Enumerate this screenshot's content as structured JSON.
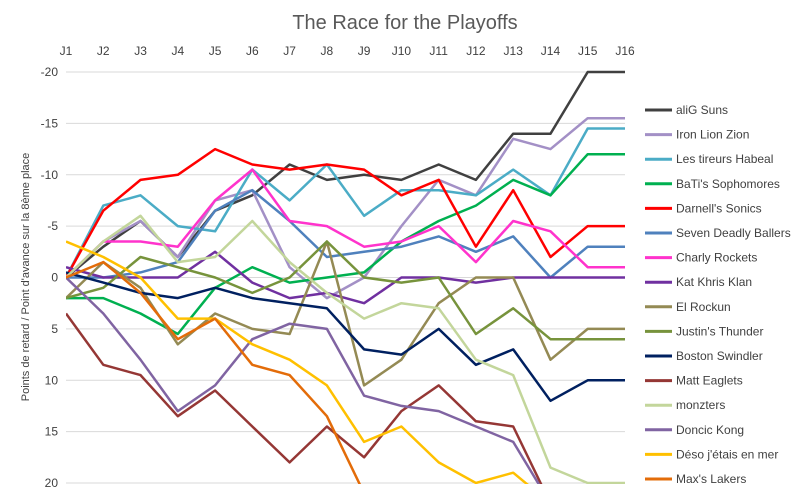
{
  "chart_data": {
    "type": "line",
    "title": "The Race for the Playoffs",
    "ylabel": "Points de retard / Point d'avance sur la 8ème place",
    "xlabel": "",
    "categories": [
      "J1",
      "J2",
      "J3",
      "J4",
      "J5",
      "J6",
      "J7",
      "J8",
      "J9",
      "J10",
      "J11",
      "J12",
      "J13",
      "J14",
      "J15",
      "J16"
    ],
    "yticks": [
      -20,
      -15,
      -10,
      -5,
      0,
      5,
      10,
      15,
      20
    ],
    "ytick_labels": [
      "-20",
      "-15",
      "-10",
      "-5",
      "0",
      "5",
      "10",
      "15",
      "20"
    ],
    "ylim": [
      -20,
      20
    ],
    "y_inverted": true,
    "grid": "horizontal",
    "legend_position": "right",
    "series": [
      {
        "name": "aliG Suns",
        "color": "#404040",
        "values": [
          0,
          -3,
          -5.5,
          -2,
          -6.5,
          -8,
          -11,
          -9.5,
          -10,
          -9.5,
          -11,
          -9.5,
          -14,
          -14,
          -20,
          -20
        ]
      },
      {
        "name": "Iron Lion Zion",
        "color": "#a390c6",
        "values": [
          0,
          -3.5,
          -5.5,
          -2,
          -7.5,
          -8.5,
          -1,
          2,
          0,
          -5,
          -9.5,
          -8,
          -13.5,
          -12.5,
          -15.5,
          -15.5
        ]
      },
      {
        "name": "Les tireurs Habeal",
        "color": "#4bacc6",
        "values": [
          0,
          -7,
          -8,
          -5,
          -4.5,
          -10.5,
          -7.5,
          -11,
          -6,
          -8.5,
          -8.5,
          -8,
          -10.5,
          -8,
          -14.5,
          -14.5
        ]
      },
      {
        "name": "BaTi's Sophomores",
        "color": "#00b050",
        "values": [
          2,
          2,
          3.5,
          5.5,
          1,
          -1,
          0.5,
          0,
          -0.5,
          -3.5,
          -5.5,
          -7,
          -9.5,
          -8,
          -12,
          -12
        ]
      },
      {
        "name": "Darnell's Sonics",
        "color": "#ff0000",
        "values": [
          0,
          -6.5,
          -9.5,
          -10,
          -12.5,
          -11,
          -10.5,
          -11,
          -10.5,
          -8,
          -9.5,
          -3,
          -8.5,
          -2,
          -5,
          -5
        ]
      },
      {
        "name": "Seven Deadly Ballers",
        "color": "#4f81bd",
        "values": [
          0,
          0,
          -0.5,
          -1.5,
          -6.5,
          -8.5,
          -5.5,
          -2,
          -2.5,
          -3,
          -4,
          -2.5,
          -4,
          0,
          -3,
          -3
        ]
      },
      {
        "name": "Charly Rockets",
        "color": "#ff33cc",
        "values": [
          0,
          -3.5,
          -3.5,
          -3,
          -7.5,
          -10.5,
          -5.5,
          -5,
          -3,
          -3.5,
          -5,
          -1.5,
          -5.5,
          -4.5,
          -1,
          -1
        ]
      },
      {
        "name": "Kat Khris Klan",
        "color": "#7030a0",
        "values": [
          -1,
          0,
          0,
          0,
          -2.5,
          0.5,
          2,
          1.5,
          2.5,
          0,
          0,
          0.5,
          0,
          0,
          0,
          0
        ]
      },
      {
        "name": "El Rockun",
        "color": "#948a54",
        "values": [
          2,
          -1.5,
          1,
          6.5,
          3.5,
          5,
          5.5,
          -3.5,
          10.5,
          8,
          2.5,
          0,
          0,
          8,
          5,
          5
        ]
      },
      {
        "name": "Justin's Thunder",
        "color": "#77933c",
        "values": [
          2,
          1,
          -2,
          -1,
          0,
          1.5,
          0,
          -3.5,
          0,
          0.5,
          0,
          5.5,
          3,
          6,
          6,
          6
        ]
      },
      {
        "name": "Boston Swindler",
        "color": "#002060",
        "values": [
          -0.5,
          0.5,
          1.5,
          2,
          1,
          2,
          2.5,
          3,
          7,
          7.5,
          5,
          8.5,
          7,
          12,
          10,
          10
        ]
      },
      {
        "name": "Matt Eaglets",
        "color": "#953735",
        "values": [
          3.5,
          8.5,
          9.5,
          13.5,
          11,
          14.5,
          18,
          14.5,
          17.5,
          13,
          10.5,
          14,
          14.5,
          22,
          22,
          22
        ]
      },
      {
        "name": "monzters",
        "color": "#c3d69b",
        "values": [
          0,
          -3.5,
          -6,
          -1.5,
          -2,
          -5.5,
          -1.5,
          1.5,
          4,
          2.5,
          3,
          8,
          9.5,
          18.5,
          20,
          20
        ]
      },
      {
        "name": "Doncic Kong",
        "color": "#8064a2",
        "values": [
          0,
          3.5,
          8,
          13,
          10.5,
          6,
          4.5,
          5,
          11.5,
          12.5,
          13,
          14.5,
          16,
          22,
          22,
          22
        ]
      },
      {
        "name": "Déso j'étais en mer",
        "color": "#ffc000",
        "values": [
          -3.5,
          -2,
          0,
          4,
          4,
          6.5,
          8,
          10.5,
          16,
          14.5,
          18,
          20,
          19,
          22,
          22,
          22
        ]
      },
      {
        "name": "Max's Lakers",
        "color": "#e36c09",
        "values": [
          0,
          -1.5,
          1.5,
          6,
          4,
          8.5,
          9.5,
          13.5,
          21,
          21,
          21,
          21,
          21,
          21,
          21,
          21
        ]
      }
    ]
  }
}
